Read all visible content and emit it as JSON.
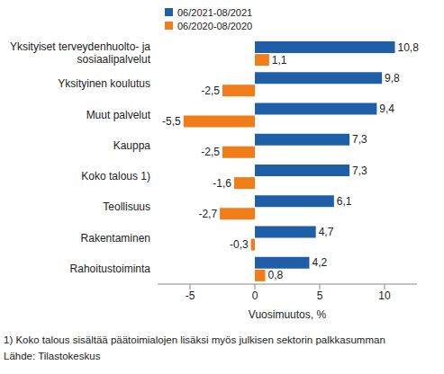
{
  "chart_data": {
    "type": "bar",
    "orientation": "horizontal",
    "categories": [
      "Yksityiset terveydenhuolto- ja sosiaalipalvelut",
      "Yksityinen koulutus",
      "Muut palvelut",
      "Kauppa",
      "Koko talous 1)",
      "Teollisuus",
      "Rakentaminen",
      "Rahoitustoiminta"
    ],
    "series": [
      {
        "name": "06/2021-08/2021",
        "color": "#1f5fa8",
        "values": [
          10.8,
          9.8,
          9.4,
          7.3,
          7.3,
          6.1,
          4.7,
          4.2
        ],
        "value_labels": [
          "10,8",
          "9,8",
          "9,4",
          "7,3",
          "7,3",
          "6,1",
          "4,7",
          "4,2"
        ]
      },
      {
        "name": "06/2020-08/2020",
        "color": "#f07d19",
        "values": [
          1.1,
          -2.5,
          -5.5,
          -2.5,
          -1.6,
          -2.7,
          -0.3,
          0.8
        ],
        "value_labels": [
          "1,1",
          "-2,5",
          "-5,5",
          "-2,5",
          "-1,6",
          "-2,7",
          "-0,3",
          "0,8"
        ]
      }
    ],
    "xlim": [
      -7.5,
      12.5
    ],
    "xticks": [
      -5,
      0,
      5,
      10
    ],
    "xlabel": "Vuosimuutos, %",
    "data_labels": true,
    "legend": "upper left",
    "grid": false,
    "footnote": "1) Koko talous sisältää päätoimialojen lisäksi myös julkisen sektorin palkkasumman",
    "source": "Lähde: Tilastokeskus"
  }
}
